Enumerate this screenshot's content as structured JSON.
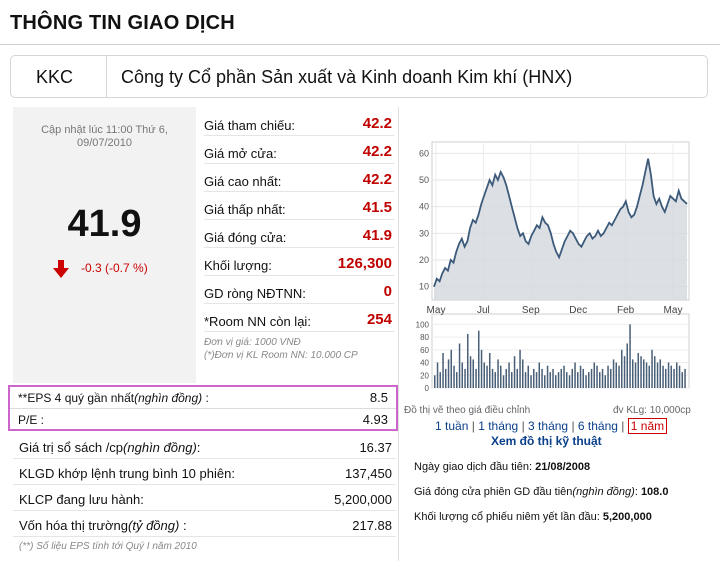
{
  "title": "THÔNG TIN GIAO DỊCH",
  "company": {
    "code": "KKC",
    "name": "Công ty Cổ phần Sản xuất và Kinh doanh Kim khí (HNX)"
  },
  "price": {
    "update_line1": "Cập nhật lúc 11:00 Thứ 6,",
    "update_line2": "09/07/2010",
    "current": "41.9",
    "change": "-0.3 (-0.7 %)",
    "down_color": "#cc0000"
  },
  "quotes": [
    {
      "label": "Giá tham chiếu:",
      "value": "42.2"
    },
    {
      "label": "Giá mở cửa:",
      "value": "42.2"
    },
    {
      "label": "Giá cao nhất:",
      "value": "42.2"
    },
    {
      "label": "Giá thấp nhất:",
      "value": "41.5"
    },
    {
      "label": "Giá đóng cửa:",
      "value": "41.9"
    },
    {
      "label": "Khối lượng:",
      "value": "126,300"
    },
    {
      "label": "GD ròng NĐTNN:",
      "value": "0"
    },
    {
      "label": "*Room NN còn lại:",
      "value": "254"
    }
  ],
  "unit_note_1": "Đơn vị giá: 1000 VNĐ",
  "unit_note_2": "(*)Đơn vị KL Room NN: 10.000 CP",
  "eps": {
    "label": "**EPS 4 quý gần nhất",
    "unit": "(nghìn đồng)",
    "colon": " :",
    "value": "8.5"
  },
  "pe": {
    "label": "P/E :",
    "value": "4.93"
  },
  "stats": [
    {
      "label": "Giá trị sổ sách /cp",
      "unit": "(nghìn đồng)",
      "suffix": ":",
      "value": "16.37"
    },
    {
      "label": "KLGD khớp lệnh trung bình 10 phiên:",
      "unit": "",
      "suffix": "",
      "value": "137,450"
    },
    {
      "label": "KLCP đang lưu hành:",
      "unit": "",
      "suffix": "",
      "value": "5,200,000"
    },
    {
      "label": "Vốn hóa thị trường",
      "unit": "(tỷ đồng)",
      "suffix": " :",
      "value": "217.88"
    }
  ],
  "eps_note": "(**) Số liệu EPS tính tới Quý I năm 2010",
  "chart_data": {
    "type": "line",
    "price_axis": {
      "ticks": [
        "60",
        "50",
        "40",
        "30",
        "20",
        "10"
      ],
      "ylim": [
        5,
        62
      ]
    },
    "volume_axis": {
      "ticks": [
        "100",
        "80",
        "60",
        "40",
        "20",
        "0"
      ],
      "ylim": [
        0,
        110
      ]
    },
    "x_labels": [
      "May",
      "Jul",
      "Sep",
      "Dec",
      "Feb",
      "May"
    ],
    "price": [
      10,
      13,
      12,
      15,
      17,
      16,
      20,
      19,
      23,
      26,
      28,
      25,
      27,
      32,
      35,
      34,
      37,
      41,
      44,
      47,
      50,
      48,
      52,
      50,
      53,
      51,
      48,
      44,
      40,
      36,
      32,
      29,
      30,
      27,
      26,
      29,
      31,
      33,
      32,
      36,
      34,
      33,
      30,
      26,
      23,
      21,
      24,
      27,
      29,
      31,
      30,
      28,
      26,
      25,
      27,
      29,
      30,
      28,
      29,
      31,
      29,
      30,
      32,
      34,
      33,
      35,
      37,
      39,
      40,
      42,
      38,
      36,
      37,
      40,
      44,
      48,
      53,
      58,
      52,
      44,
      41,
      43,
      40,
      38,
      41,
      44,
      43,
      42,
      46,
      43,
      42,
      41
    ],
    "volume": [
      20,
      40,
      25,
      55,
      30,
      45,
      60,
      35,
      25,
      70,
      40,
      30,
      85,
      50,
      45,
      30,
      90,
      60,
      40,
      35,
      55,
      30,
      25,
      45,
      35,
      20,
      30,
      40,
      25,
      50,
      30,
      60,
      45,
      25,
      35,
      20,
      30,
      25,
      40,
      30,
      20,
      35,
      25,
      30,
      20,
      25,
      30,
      35,
      25,
      20,
      30,
      40,
      25,
      35,
      30,
      20,
      25,
      30,
      40,
      35,
      25,
      30,
      20,
      35,
      30,
      45,
      40,
      35,
      60,
      50,
      70,
      100,
      45,
      40,
      55,
      50,
      45,
      40,
      35,
      60,
      50,
      40,
      45,
      35,
      30,
      40,
      35,
      30,
      40,
      35,
      25,
      30
    ],
    "line_color": "#3c5a7a",
    "fill_color": "#d3d8de",
    "volume_color": "#4a5f78",
    "grid": true
  },
  "chart_caption_left": "Đồ thị vẽ theo giá điều chỉnh",
  "chart_caption_right": "đv KLg: 10,000cp",
  "ranges": [
    "1 tuần",
    "1 tháng",
    "3 tháng",
    "6 tháng",
    "1 năm"
  ],
  "range_sep": "|",
  "tech_link": "Xem đồ thị kỹ thuật",
  "listing": [
    {
      "label": "Ngày giao dịch đầu tiên:",
      "unit": "",
      "suffix": "",
      "value": "21/08/2008"
    },
    {
      "label": "Giá đóng cửa phiên GD đầu tiên",
      "unit": "(nghìn đồng)",
      "suffix": ":",
      "value": "108.0"
    },
    {
      "label": "Khối lượng cổ phiếu niêm yết lần đầu:",
      "unit": "",
      "suffix": "",
      "value": "5,200,000"
    }
  ]
}
